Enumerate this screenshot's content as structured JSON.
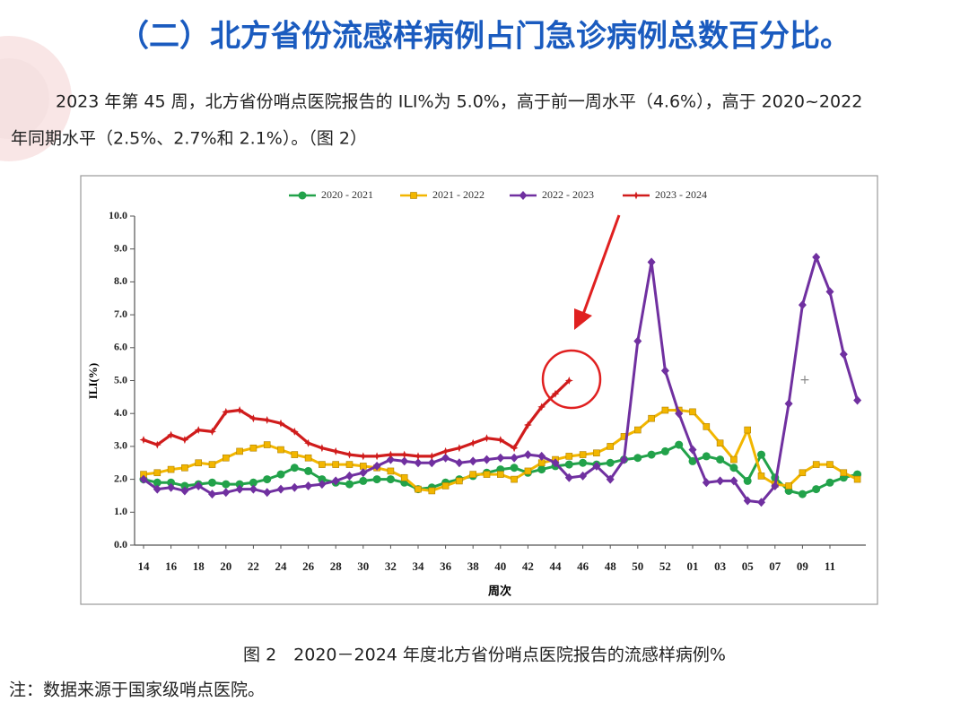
{
  "heading": "（二）北方省份流感样病例占门急诊病例总数百分比。",
  "paragraph": [
    "2023 年第 45 周，北方省份哨点医院报告的 ILI%为 5.0%，高于前一周水平（4.6%），高于 2020~2022",
    "年同期水平（2.5%、2.7%和 2.1%）。（图 2）"
  ],
  "caption": "图 2　2020－2024 年度北方省份哨点医院报告的流感样病例%",
  "note": "注：数据来源于国家级哨点医院。",
  "chart_data": {
    "type": "line",
    "x_label": "周次",
    "y_label": "ILI(%)",
    "categories": [
      "14",
      null,
      "16",
      null,
      "18",
      null,
      "20",
      null,
      "22",
      null,
      "24",
      null,
      "26",
      null,
      "28",
      null,
      "30",
      null,
      "32",
      null,
      "34",
      null,
      "36",
      null,
      "38",
      null,
      "40",
      null,
      "42",
      null,
      "44",
      null,
      "46",
      null,
      "48",
      null,
      "50",
      null,
      "52",
      null,
      "01",
      null,
      "03",
      null,
      "05",
      null,
      "07",
      null,
      "09",
      null,
      "11",
      null,
      null
    ],
    "ylim": [
      0,
      10
    ],
    "yticks": [
      {
        "value": 0,
        "label": "0.0"
      },
      {
        "value": 1,
        "label": "1.0"
      },
      {
        "value": 2,
        "label": "2.0"
      },
      {
        "value": 3,
        "label": "3.0"
      },
      {
        "value": 4,
        "label": "4.0"
      },
      {
        "value": 5,
        "label": "5.0"
      },
      {
        "value": 6,
        "label": "6.0"
      },
      {
        "value": 7,
        "label": "7.0"
      },
      {
        "value": 8,
        "label": "8.0"
      },
      {
        "value": 9,
        "label": "9.0"
      },
      {
        "value": 10,
        "label": "10.0"
      }
    ],
    "legend": "top",
    "series": [
      {
        "name": "2020 - 2021",
        "color": "#22a24a",
        "marker": "circle",
        "values": [
          2.0,
          1.9,
          1.9,
          1.8,
          1.85,
          1.9,
          1.85,
          1.85,
          1.9,
          2.0,
          2.15,
          2.35,
          2.25,
          2.0,
          1.9,
          1.85,
          1.95,
          2.0,
          2.0,
          1.9,
          1.7,
          1.75,
          1.9,
          2.0,
          2.1,
          2.2,
          2.3,
          2.35,
          2.2,
          2.3,
          2.4,
          2.45,
          2.5,
          2.45,
          2.5,
          2.6,
          2.65,
          2.75,
          2.85,
          3.05,
          2.55,
          2.7,
          2.6,
          2.35,
          1.95,
          2.75,
          2.05,
          1.65,
          1.55,
          1.7,
          1.9,
          2.05,
          2.15
        ]
      },
      {
        "name": "2021 - 2022",
        "color": "#f2b600",
        "marker": "square",
        "values": [
          2.15,
          2.2,
          2.3,
          2.35,
          2.5,
          2.45,
          2.65,
          2.85,
          2.95,
          3.05,
          2.9,
          2.75,
          2.65,
          2.45,
          2.45,
          2.45,
          2.4,
          2.35,
          2.25,
          2.05,
          1.7,
          1.65,
          1.8,
          1.95,
          2.15,
          2.15,
          2.15,
          2.0,
          2.25,
          2.5,
          2.6,
          2.7,
          2.75,
          2.8,
          3.0,
          3.3,
          3.5,
          3.85,
          4.1,
          4.1,
          4.05,
          3.6,
          3.1,
          2.6,
          3.5,
          2.1,
          1.85,
          1.8,
          2.2,
          2.45,
          2.45,
          2.2,
          2.0
        ]
      },
      {
        "name": "2022 - 2023",
        "color": "#7030a0",
        "marker": "diamond",
        "values": [
          2.0,
          1.7,
          1.75,
          1.65,
          1.8,
          1.55,
          1.6,
          1.7,
          1.7,
          1.6,
          1.7,
          1.75,
          1.8,
          1.85,
          1.95,
          2.1,
          2.2,
          2.4,
          2.6,
          2.55,
          2.5,
          2.5,
          2.65,
          2.5,
          2.55,
          2.6,
          2.65,
          2.65,
          2.75,
          2.7,
          2.5,
          2.05,
          2.1,
          2.4,
          2.0,
          2.6,
          6.2,
          8.6,
          5.3,
          4.0,
          2.9,
          1.9,
          1.95,
          1.95,
          1.35,
          1.3,
          1.8,
          4.3,
          7.3,
          8.75,
          7.7,
          5.8,
          4.4
        ]
      },
      {
        "name": "2023 - 2024",
        "color": "#d01c1c",
        "marker": "star",
        "values": [
          3.2,
          3.05,
          3.35,
          3.2,
          3.5,
          3.45,
          4.05,
          4.1,
          3.85,
          3.8,
          3.7,
          3.45,
          3.1,
          2.95,
          2.85,
          2.75,
          2.7,
          2.7,
          2.75,
          2.75,
          2.7,
          2.7,
          2.85,
          2.95,
          3.1,
          3.25,
          3.2,
          2.95,
          3.65,
          4.2,
          4.6,
          5.0,
          null,
          null,
          null,
          null,
          null,
          null,
          null,
          null,
          null,
          null,
          null,
          null,
          null,
          null,
          null,
          null,
          null,
          null,
          null,
          null,
          null
        ]
      }
    ]
  }
}
